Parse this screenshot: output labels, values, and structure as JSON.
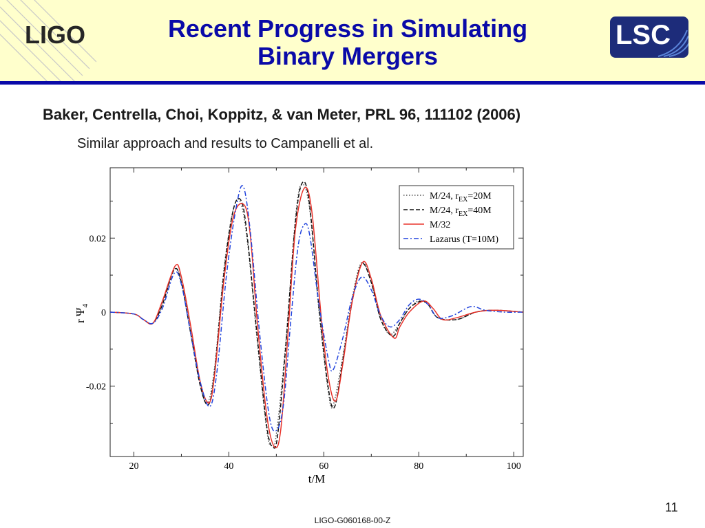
{
  "header": {
    "title_line1": "Recent Progress in Simulating",
    "title_line2": "Binary Mergers",
    "logo_left": "LIGO",
    "logo_right": "LSC"
  },
  "citation": "Baker, Centrella, Choi, Koppitz, & van Meter, PRL 96, 111102 (2006)",
  "note": "Similar approach and results to Campanelli et al.",
  "footer": {
    "slide_number": "11",
    "doc_id": "LIGO-G060168-00-Z"
  },
  "colors": {
    "title": "#0a0aa8",
    "header_bg": "#ffffcc",
    "rule": "#0a0aa8",
    "lsc_bg": "#1d2c7a"
  },
  "chart_data": {
    "type": "line",
    "xlabel": "t/M",
    "ylabel_main": "r Ψ",
    "ylabel_sub": "4",
    "xlim": [
      15,
      102
    ],
    "ylim": [
      -0.039,
      0.039
    ],
    "xticks": [
      20,
      40,
      60,
      80,
      100
    ],
    "yticks": [
      -0.02,
      0,
      0.02
    ],
    "ytick_labels": [
      "-0.02",
      "0",
      "0.02"
    ],
    "grid": false,
    "legend_position": "top-right",
    "series": [
      {
        "name": "M/24, r=20M",
        "name_sub": "EX",
        "name_prefix": "M/24, r",
        "name_suffix": "=20M",
        "style": "dotted",
        "color": "#555555",
        "points": [
          [
            15,
            0
          ],
          [
            20,
            -0.0005
          ],
          [
            22,
            -0.002
          ],
          [
            24,
            -0.003
          ],
          [
            26,
            0.002
          ],
          [
            28.5,
            0.0115
          ],
          [
            30,
            0.008
          ],
          [
            32,
            -0.006
          ],
          [
            34,
            -0.02
          ],
          [
            35.5,
            -0.0245
          ],
          [
            37,
            -0.015
          ],
          [
            39,
            0.012
          ],
          [
            41,
            0.028
          ],
          [
            42.5,
            0.0295
          ],
          [
            44,
            0.018
          ],
          [
            46,
            -0.008
          ],
          [
            48,
            -0.032
          ],
          [
            49,
            -0.036
          ],
          [
            50,
            -0.033
          ],
          [
            52,
            -0.008
          ],
          [
            54,
            0.025
          ],
          [
            55.3,
            0.0345
          ],
          [
            57,
            0.028
          ],
          [
            59,
            0.0
          ],
          [
            61,
            -0.022
          ],
          [
            62,
            -0.025
          ],
          [
            64,
            -0.012
          ],
          [
            66,
            0.004
          ],
          [
            68,
            0.0135
          ],
          [
            70,
            0.008
          ],
          [
            72,
            -0.002
          ],
          [
            74,
            -0.006
          ],
          [
            76,
            -0.003
          ],
          [
            78,
            0.001
          ],
          [
            80,
            0.003
          ],
          [
            82,
            0.002
          ],
          [
            84,
            -0.0015
          ],
          [
            88,
            -0.002
          ],
          [
            92,
            0
          ],
          [
            96,
            0.0005
          ],
          [
            102,
            0
          ]
        ]
      },
      {
        "name": "M/24, r=40M",
        "name_sub": "EX",
        "name_prefix": "M/24, r",
        "name_suffix": "=40M",
        "style": "dashed",
        "color": "#111111",
        "points": [
          [
            15,
            0
          ],
          [
            20,
            -0.0005
          ],
          [
            22,
            -0.002
          ],
          [
            24,
            -0.003
          ],
          [
            26,
            0.002
          ],
          [
            28.5,
            0.0115
          ],
          [
            30,
            0.008
          ],
          [
            32,
            -0.006
          ],
          [
            34,
            -0.02
          ],
          [
            35.7,
            -0.025
          ],
          [
            37,
            -0.016
          ],
          [
            39,
            0.011
          ],
          [
            41,
            0.028
          ],
          [
            42.7,
            0.0298
          ],
          [
            44,
            0.019
          ],
          [
            46,
            -0.007
          ],
          [
            48,
            -0.031
          ],
          [
            49.3,
            -0.0365
          ],
          [
            50.3,
            -0.033
          ],
          [
            52,
            -0.009
          ],
          [
            54,
            0.024
          ],
          [
            55.5,
            0.035
          ],
          [
            57,
            0.029
          ],
          [
            59,
            0.001
          ],
          [
            61,
            -0.021
          ],
          [
            62.3,
            -0.0255
          ],
          [
            64,
            -0.013
          ],
          [
            66,
            0.003
          ],
          [
            68,
            0.013
          ],
          [
            70,
            0.008
          ],
          [
            72,
            -0.002
          ],
          [
            74.5,
            -0.0065
          ],
          [
            76,
            -0.003
          ],
          [
            78,
            0.001
          ],
          [
            80.5,
            0.003
          ],
          [
            82,
            0.002
          ],
          [
            84,
            -0.0015
          ],
          [
            88,
            -0.002
          ],
          [
            92,
            0
          ],
          [
            96,
            0.0005
          ],
          [
            102,
            0
          ]
        ]
      },
      {
        "name": "M/32",
        "style": "solid",
        "color": "#e8322a",
        "points": [
          [
            15,
            0
          ],
          [
            20,
            -0.0005
          ],
          [
            22,
            -0.002
          ],
          [
            24,
            -0.003
          ],
          [
            26,
            0.003
          ],
          [
            28.7,
            0.0125
          ],
          [
            30,
            0.0095
          ],
          [
            32,
            -0.004
          ],
          [
            34,
            -0.019
          ],
          [
            35.8,
            -0.0245
          ],
          [
            37,
            -0.017
          ],
          [
            39,
            0.009
          ],
          [
            41,
            0.026
          ],
          [
            43.2,
            0.029
          ],
          [
            44.5,
            0.021
          ],
          [
            46,
            -0.003
          ],
          [
            48,
            -0.028
          ],
          [
            49.7,
            -0.0365
          ],
          [
            51,
            -0.031
          ],
          [
            52.5,
            -0.005
          ],
          [
            54,
            0.022
          ],
          [
            55.9,
            0.0335
          ],
          [
            57.5,
            0.027
          ],
          [
            59.5,
            -0.002
          ],
          [
            61,
            -0.018
          ],
          [
            62.5,
            -0.024
          ],
          [
            64,
            -0.014
          ],
          [
            66,
            0.003
          ],
          [
            68.2,
            0.0135
          ],
          [
            70,
            0.009
          ],
          [
            72,
            -0.001
          ],
          [
            74.8,
            -0.007
          ],
          [
            76,
            -0.004
          ],
          [
            78,
            0.0
          ],
          [
            81,
            0.003
          ],
          [
            83,
            0.001
          ],
          [
            85,
            -0.002
          ],
          [
            88,
            -0.0015
          ],
          [
            92,
            0
          ],
          [
            96,
            0.0005
          ],
          [
            102,
            0
          ]
        ]
      },
      {
        "name": "Lazarus (T=10M)",
        "style": "dashdot",
        "color": "#2244dd",
        "points": [
          [
            15,
            0
          ],
          [
            20,
            -0.0005
          ],
          [
            22,
            -0.002
          ],
          [
            24,
            -0.003
          ],
          [
            26,
            0.001
          ],
          [
            28.5,
            0.0105
          ],
          [
            30,
            0.0075
          ],
          [
            32,
            -0.006
          ],
          [
            34,
            -0.019
          ],
          [
            36,
            -0.0255
          ],
          [
            37.5,
            -0.016
          ],
          [
            39.5,
            0.01
          ],
          [
            41.5,
            0.028
          ],
          [
            43,
            0.034
          ],
          [
            44.5,
            0.022
          ],
          [
            46.5,
            -0.006
          ],
          [
            48.5,
            -0.028
          ],
          [
            50,
            -0.032
          ],
          [
            51.5,
            -0.025
          ],
          [
            53,
            -0.003
          ],
          [
            54.5,
            0.017
          ],
          [
            55.8,
            0.0235
          ],
          [
            57,
            0.021
          ],
          [
            59,
            0.002
          ],
          [
            61,
            -0.013
          ],
          [
            62,
            -0.0155
          ],
          [
            64,
            -0.007
          ],
          [
            66,
            0.004
          ],
          [
            68,
            0.0095
          ],
          [
            70,
            0.006
          ],
          [
            72,
            -0.001
          ],
          [
            74,
            -0.004
          ],
          [
            76,
            -0.002
          ],
          [
            78,
            0.002
          ],
          [
            80,
            0.0035
          ],
          [
            82,
            0.002
          ],
          [
            84,
            -0.0015
          ],
          [
            87,
            -0.001
          ],
          [
            91,
            0.0015
          ],
          [
            94,
            0.0005
          ],
          [
            98,
            0
          ],
          [
            102,
            0
          ]
        ]
      }
    ]
  }
}
